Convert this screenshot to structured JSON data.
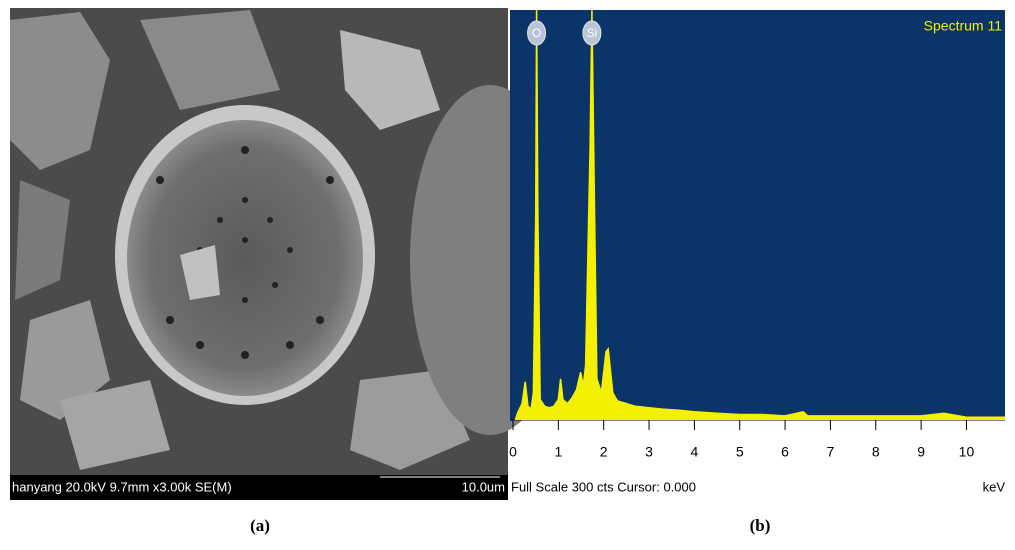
{
  "sem_image": {
    "info": "hanyang 20.0kV 9.7mm x3.00k SE(M)",
    "scale": "10.0um",
    "caption": "(a)"
  },
  "chart_data": {
    "type": "area",
    "caption": "(b)",
    "title": "Spectrum 11",
    "footer": "Full Scale 300 cts Cursor: 0.000",
    "xlabel": "keV",
    "color": "#f5f000",
    "background": "#0b3568",
    "x": [
      0.05,
      0.1,
      0.2,
      0.27,
      0.33,
      0.4,
      0.45,
      0.5,
      0.52,
      0.55,
      0.6,
      0.7,
      0.8,
      0.9,
      1.0,
      1.05,
      1.1,
      1.2,
      1.3,
      1.4,
      1.49,
      1.55,
      1.6,
      1.7,
      1.74,
      1.8,
      1.85,
      1.95,
      2.05,
      2.1,
      2.2,
      2.3,
      2.5,
      2.7,
      3.0,
      3.3,
      3.7,
      4.0,
      4.5,
      5.0,
      5.5,
      6.0,
      6.4,
      6.5,
      7.0,
      8.0,
      9.0,
      9.5,
      10.0,
      10.85
    ],
    "values": [
      0,
      5,
      12,
      28,
      10,
      8,
      20,
      150,
      300,
      150,
      15,
      10,
      9,
      10,
      15,
      30,
      15,
      12,
      16,
      22,
      35,
      25,
      40,
      200,
      300,
      150,
      30,
      20,
      50,
      52,
      20,
      14,
      12,
      10,
      9,
      8,
      7,
      6,
      5,
      4,
      4,
      3,
      6,
      3,
      3,
      3,
      3,
      5,
      2,
      2
    ],
    "xlim": [
      0,
      10.85
    ],
    "ylim": [
      0,
      300
    ],
    "xticks": [
      0,
      1,
      2,
      3,
      4,
      5,
      6,
      7,
      8,
      9,
      10
    ],
    "annotations": [
      {
        "text": "O",
        "x": 0.52
      },
      {
        "text": "Si",
        "x": 1.74
      }
    ]
  }
}
